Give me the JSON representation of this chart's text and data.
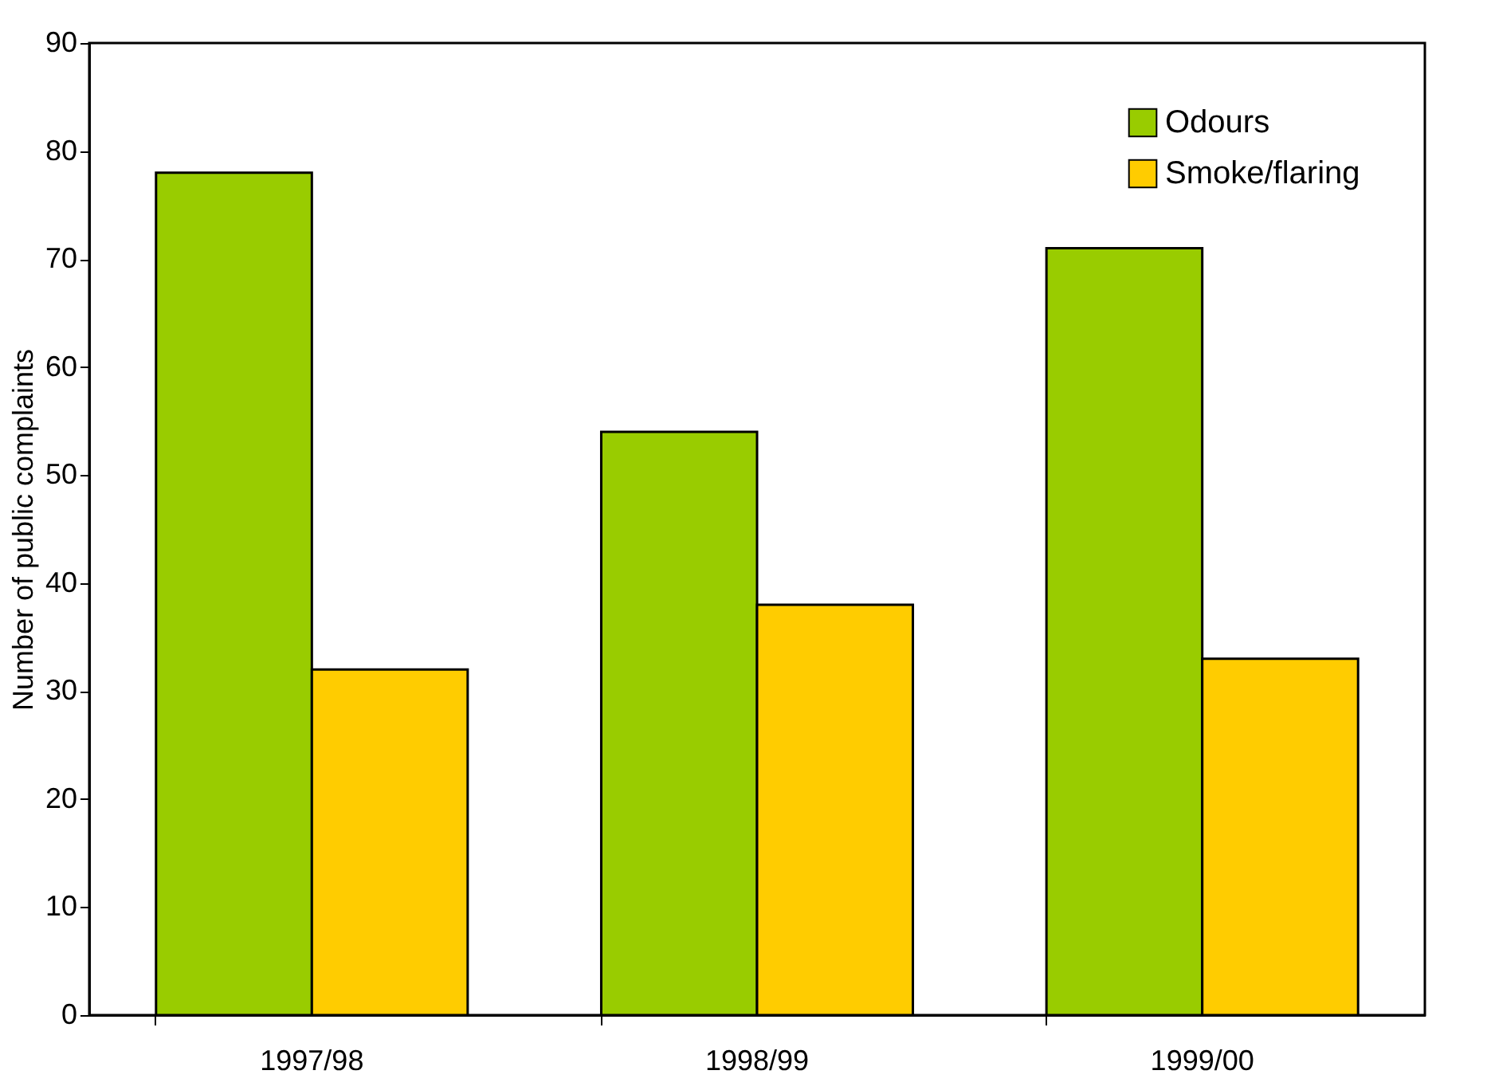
{
  "chart_data": {
    "type": "bar",
    "ylabel": "Number of public complaints",
    "categories": [
      "1997/98",
      "1998/99",
      "1999/00"
    ],
    "series": [
      {
        "name": "Odours",
        "color": "#99cc00",
        "values": [
          78,
          54,
          71
        ]
      },
      {
        "name": "Smoke/flaring",
        "color": "#ffcc00",
        "values": [
          32,
          38,
          33
        ]
      }
    ],
    "ylim": [
      0,
      90
    ],
    "yticks": [
      0,
      10,
      20,
      30,
      40,
      50,
      60,
      70,
      80,
      90
    ],
    "grid": false,
    "legend": "top right"
  }
}
